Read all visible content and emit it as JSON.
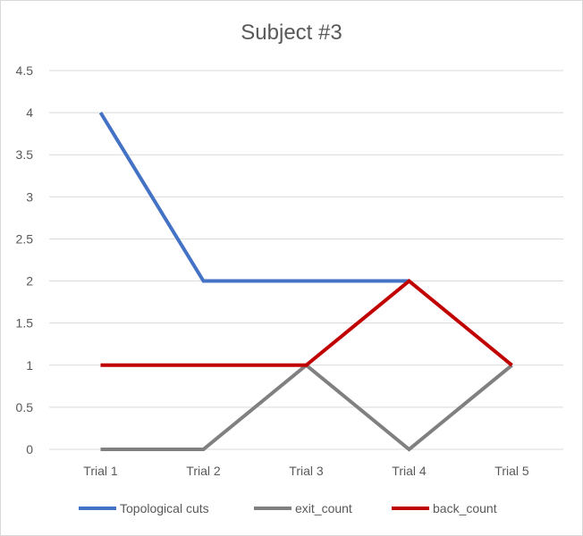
{
  "chart_data": {
    "type": "line",
    "title": "Subject #3",
    "categories": [
      "Trial 1",
      "Trial 2",
      "Trial 3",
      "Trial 4",
      "Trial 5"
    ],
    "ylim": [
      0,
      4.5
    ],
    "yticks": [
      "0",
      "0.5",
      "1",
      "1.5",
      "2",
      "2.5",
      "3",
      "3.5",
      "4",
      "4.5"
    ],
    "grid": true,
    "legend_position": "bottom",
    "series": [
      {
        "name": "Topological cuts",
        "color": "#4472c4",
        "values": [
          4,
          2,
          2,
          2,
          null
        ]
      },
      {
        "name": "exit_count",
        "color": "#808080",
        "values": [
          0,
          0,
          1,
          0,
          1
        ]
      },
      {
        "name": "back_count",
        "color": "#c00000",
        "values": [
          1,
          1,
          1,
          2,
          1
        ]
      }
    ]
  }
}
